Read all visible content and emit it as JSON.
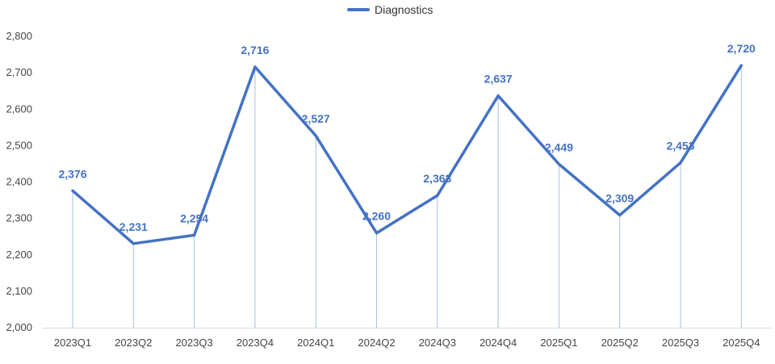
{
  "chart_data": {
    "type": "line",
    "categories": [
      "2023Q1",
      "2023Q2",
      "2023Q3",
      "2023Q4",
      "2024Q1",
      "2024Q2",
      "2024Q3",
      "2024Q4",
      "2025Q1",
      "2025Q2",
      "2025Q3",
      "2025Q4"
    ],
    "series": [
      {
        "name": "Diagnostics",
        "values": [
          2376,
          2231,
          2254,
          2716,
          2527,
          2260,
          2363,
          2637,
          2449,
          2309,
          2453,
          2720
        ],
        "labels": [
          "2,376",
          "2,231",
          "2,254",
          "2,716",
          "2,527",
          "2,260",
          "2,363",
          "2,637",
          "2,449",
          "2,309",
          "2,453",
          "2,720"
        ]
      }
    ],
    "ylim": [
      2000,
      2800
    ],
    "yticks": [
      2000,
      2100,
      2200,
      2300,
      2400,
      2500,
      2600,
      2700,
      2800
    ],
    "ytick_labels": [
      "2,000",
      "2,100",
      "2,200",
      "2,300",
      "2,400",
      "2,500",
      "2,600",
      "2,700",
      "2,800"
    ],
    "legend_position": "top-center",
    "drop_lines": true,
    "grid": false
  },
  "legend": {
    "label": "Diagnostics"
  },
  "colors": {
    "series": "#4472c4",
    "axis": "#d9d9d9",
    "drop_line": "#a9bfe3"
  }
}
